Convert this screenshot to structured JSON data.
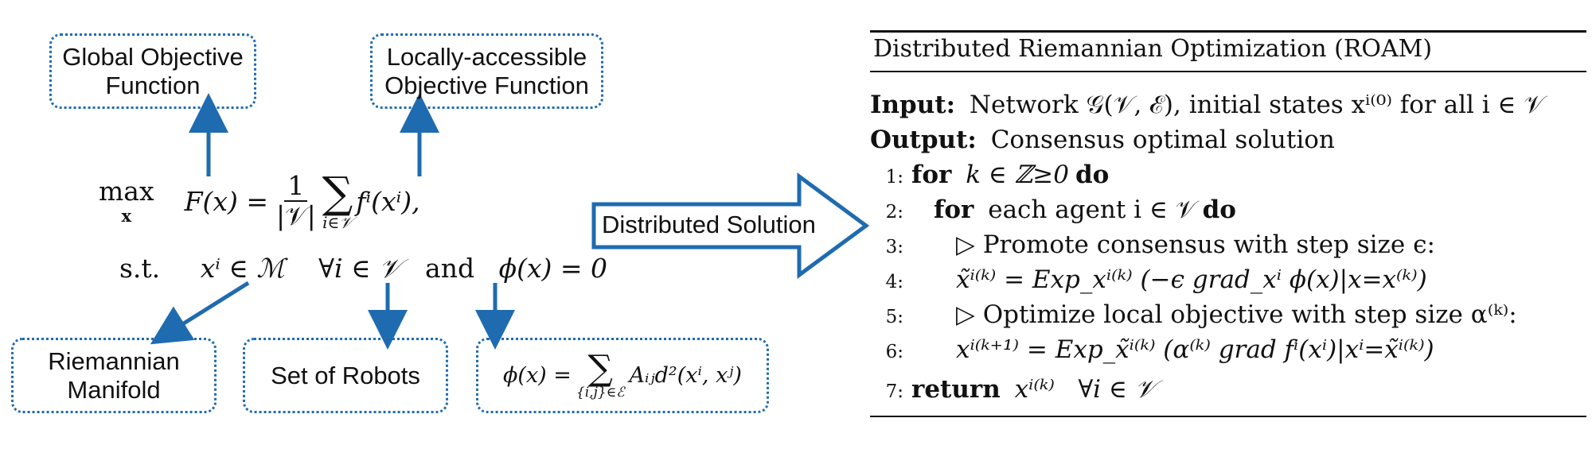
{
  "boxes": {
    "global": [
      "Global Objective",
      "Function"
    ],
    "local": [
      "Locally-accessible",
      "Objective Function"
    ],
    "manifold": [
      "Riemannian",
      "Manifold"
    ],
    "robots": "Set of Robots"
  },
  "arrow_label": "Distributed Solution",
  "equation": {
    "max": "max",
    "max_sub": "x",
    "F_lhs": "F(x) =",
    "frac_num": "1",
    "frac_den": "|𝒱|",
    "sum_sub": "i∈𝒱",
    "sum_term": "fⁱ(xⁱ),",
    "st": "s.t.",
    "c1": "xⁱ ∈ ℳ",
    "c2": "∀i ∈ 𝒱",
    "and": "and",
    "c3": "ϕ(x) = 0"
  },
  "phi_box": {
    "lhs": "ϕ(x) =",
    "sum_sub": "{i,j}∈ℰ",
    "term": "Aᵢⱼd²(xⁱ, xʲ)"
  },
  "algorithm": {
    "title": "Distributed Riemannian Optimization (ROAM)",
    "input_label": "Input:",
    "input_text": "Network 𝒢(𝒱, ℰ), initial states xⁱ⁽⁰⁾ for all i ∈ 𝒱",
    "output_label": "Output:",
    "output_text": "Consensus optimal solution",
    "lines": [
      {
        "num": "1:",
        "kw1": "for",
        "text": "k ∈ ℤ≥0",
        "kw2": "do"
      },
      {
        "num": "2:",
        "kw1": "for",
        "text": "each agent i ∈ 𝒱",
        "kw2": "do"
      },
      {
        "num": "3:",
        "text": "▷ Promote consensus with step size ϵ:"
      },
      {
        "num": "4:",
        "text": "x̃ⁱ⁽ᵏ⁾ = Exp_xⁱ⁽ᵏ⁾ (−ϵ grad_xⁱ ϕ(x)|x=x⁽ᵏ⁾)"
      },
      {
        "num": "5:",
        "text": "▷ Optimize local objective with step size α⁽ᵏ⁾:"
      },
      {
        "num": "6:",
        "text": "xⁱ⁽ᵏ⁺¹⁾ = Exp_x̃ⁱ⁽ᵏ⁾ (α⁽ᵏ⁾ grad fⁱ(xⁱ)|xⁱ=x̃ⁱ⁽ᵏ⁾)"
      },
      {
        "num": "7:",
        "kw1": "return",
        "text": "xⁱ⁽ᵏ⁾   ∀i ∈ 𝒱"
      }
    ]
  },
  "colors": {
    "accent": "#1f6bb0",
    "text": "#111111"
  }
}
